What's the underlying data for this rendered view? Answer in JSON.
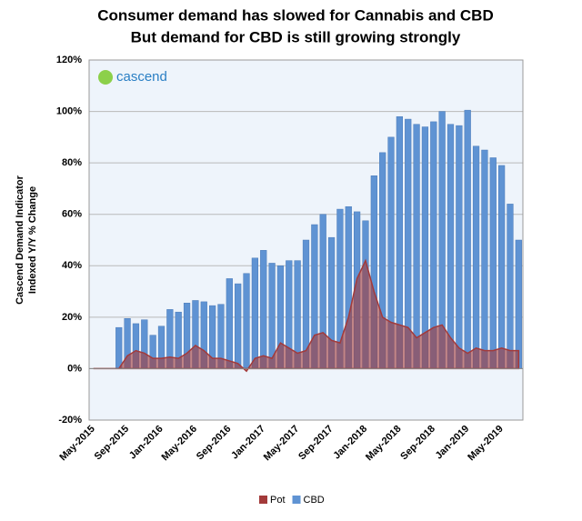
{
  "chart_data": {
    "type": "bar_area",
    "title": [
      "Consumer demand has slowed for Cannabis and CBD",
      "But demand for CBD is still growing strongly"
    ],
    "ylabel": [
      "Cascend Demand Indicator",
      "Indexed Y/Y % Change"
    ],
    "logo": "cascend",
    "categories": [
      "May-2015",
      null,
      null,
      null,
      "Sep-2015",
      null,
      null,
      null,
      "Jan-2016",
      null,
      null,
      null,
      "May-2016",
      null,
      null,
      null,
      "Sep-2016",
      null,
      null,
      null,
      "Jan-2017",
      null,
      null,
      null,
      "May-2017",
      null,
      null,
      null,
      "Sep-2017",
      null,
      null,
      null,
      "Jan-2018",
      null,
      null,
      null,
      "May-2018",
      null,
      null,
      null,
      "Sep-2018",
      null,
      null,
      null,
      "Jan-2019",
      null,
      null,
      null,
      "May-2019",
      null,
      null
    ],
    "series": [
      {
        "name": "Pot",
        "color": "#a33a3a",
        "kind": "area",
        "values": [
          0,
          0,
          0,
          0,
          5,
          7,
          6,
          4,
          4,
          4.5,
          4,
          6,
          9,
          7,
          4,
          4,
          3,
          2,
          -1,
          4,
          5,
          4,
          10,
          8,
          6,
          7,
          13,
          14,
          11,
          10,
          20,
          35,
          42,
          30,
          20,
          18,
          17,
          16,
          12,
          14,
          16,
          17,
          12,
          8,
          6,
          8,
          7,
          7,
          8,
          7,
          7
        ]
      },
      {
        "name": "CBD",
        "color": "#5f93d3",
        "kind": "bar",
        "values": [
          null,
          null,
          null,
          16,
          19.5,
          17.5,
          19,
          13,
          16.5,
          23,
          22,
          25.5,
          26.5,
          26,
          24.5,
          25,
          35,
          33,
          37,
          43,
          46,
          41,
          40,
          42,
          42,
          50,
          56,
          60,
          51,
          62,
          63,
          61,
          57.5,
          75,
          84,
          90,
          98,
          97,
          95,
          94,
          96,
          100,
          95,
          94.5,
          100.5,
          86.5,
          85,
          82,
          79,
          64,
          50
        ]
      }
    ],
    "ylim": [
      -20,
      120
    ],
    "yticks": [
      {
        "value": -20,
        "label": "-20%"
      },
      {
        "value": 0,
        "label": "0%"
      },
      {
        "value": 20,
        "label": "20%"
      },
      {
        "value": 40,
        "label": "40%"
      },
      {
        "value": 60,
        "label": "60%"
      },
      {
        "value": 80,
        "label": "80%"
      },
      {
        "value": 100,
        "label": "100%"
      },
      {
        "value": 120,
        "label": "120%"
      }
    ],
    "grid": true,
    "legend": "bottom"
  }
}
